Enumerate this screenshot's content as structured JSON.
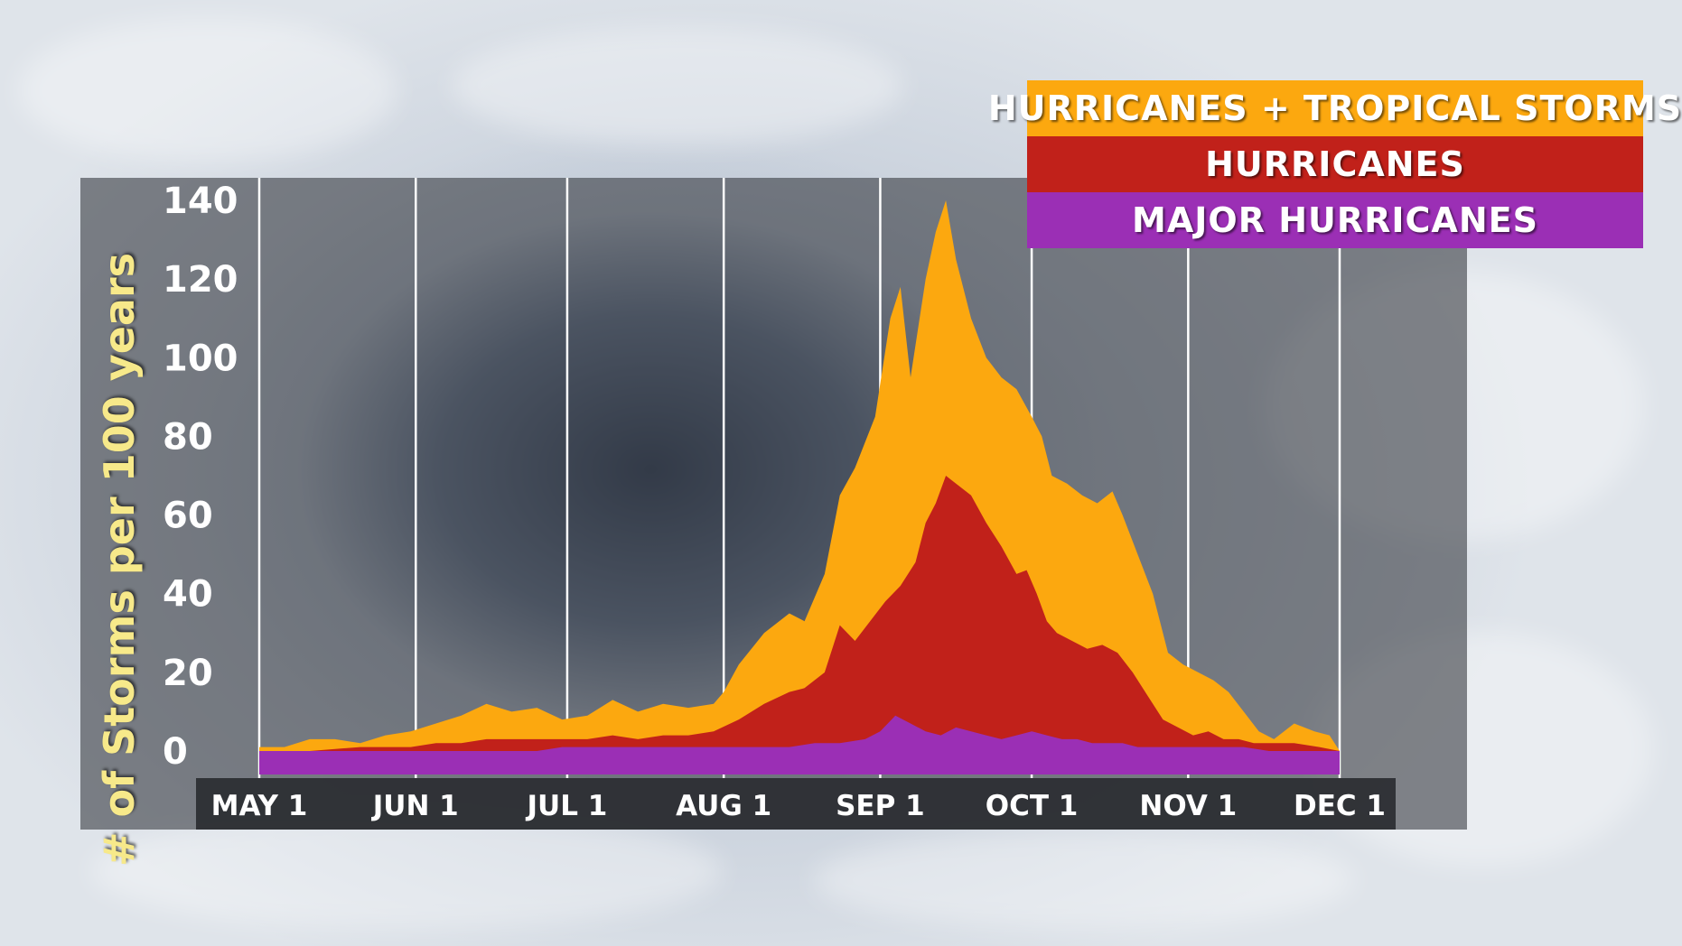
{
  "colors": {
    "tropical": "#fca80f",
    "hurricanes": "#c1211a",
    "major": "#9b2fb5",
    "panel": "#3b3f46",
    "tick_text": "#ffffff",
    "ylabel_text": "#f7e98a"
  },
  "chart_data": {
    "type": "area",
    "title": "",
    "xlabel": "",
    "ylabel": "# of Storms per 100 years",
    "ylim": [
      0,
      140
    ],
    "yticks": [
      0,
      20,
      40,
      60,
      80,
      100,
      120,
      140
    ],
    "xticks": [
      {
        "label": "MAY 1",
        "day": 0
      },
      {
        "label": "JUN 1",
        "day": 31
      },
      {
        "label": "JUL 1",
        "day": 61
      },
      {
        "label": "AUG 1",
        "day": 92
      },
      {
        "label": "SEP 1",
        "day": 123
      },
      {
        "label": "OCT 1",
        "day": 153
      },
      {
        "label": "NOV 1",
        "day": 184
      },
      {
        "label": "DEC 1",
        "day": 214
      }
    ],
    "legend_position": "top-right",
    "grid": "vertical",
    "series": [
      {
        "name": "HURRICANES + TROPICAL STORMS",
        "color_key": "tropical",
        "points": [
          [
            0,
            1
          ],
          [
            5,
            1
          ],
          [
            10,
            3
          ],
          [
            15,
            3
          ],
          [
            20,
            2
          ],
          [
            25,
            4
          ],
          [
            30,
            5
          ],
          [
            35,
            7
          ],
          [
            40,
            9
          ],
          [
            45,
            12
          ],
          [
            50,
            10
          ],
          [
            55,
            11
          ],
          [
            60,
            8
          ],
          [
            65,
            9
          ],
          [
            70,
            13
          ],
          [
            75,
            10
          ],
          [
            80,
            12
          ],
          [
            85,
            11
          ],
          [
            90,
            12
          ],
          [
            92,
            15
          ],
          [
            95,
            22
          ],
          [
            100,
            30
          ],
          [
            105,
            35
          ],
          [
            108,
            33
          ],
          [
            112,
            45
          ],
          [
            115,
            65
          ],
          [
            118,
            72
          ],
          [
            122,
            85
          ],
          [
            125,
            110
          ],
          [
            127,
            118
          ],
          [
            129,
            95
          ],
          [
            132,
            120
          ],
          [
            134,
            132
          ],
          [
            136,
            140
          ],
          [
            138,
            125
          ],
          [
            141,
            110
          ],
          [
            144,
            100
          ],
          [
            147,
            95
          ],
          [
            150,
            92
          ],
          [
            153,
            85
          ],
          [
            155,
            80
          ],
          [
            157,
            70
          ],
          [
            160,
            68
          ],
          [
            163,
            65
          ],
          [
            166,
            63
          ],
          [
            169,
            66
          ],
          [
            171,
            60
          ],
          [
            174,
            50
          ],
          [
            177,
            40
          ],
          [
            180,
            25
          ],
          [
            183,
            22
          ],
          [
            186,
            20
          ],
          [
            189,
            18
          ],
          [
            192,
            15
          ],
          [
            195,
            10
          ],
          [
            198,
            5
          ],
          [
            201,
            3
          ],
          [
            205,
            7
          ],
          [
            209,
            5
          ],
          [
            212,
            4
          ],
          [
            214,
            0
          ]
        ]
      },
      {
        "name": "HURRICANES",
        "color_key": "hurricanes",
        "points": [
          [
            0,
            0
          ],
          [
            10,
            0
          ],
          [
            20,
            1
          ],
          [
            25,
            1
          ],
          [
            30,
            1
          ],
          [
            35,
            2
          ],
          [
            40,
            2
          ],
          [
            45,
            3
          ],
          [
            50,
            3
          ],
          [
            55,
            3
          ],
          [
            60,
            3
          ],
          [
            65,
            3
          ],
          [
            70,
            4
          ],
          [
            75,
            3
          ],
          [
            80,
            4
          ],
          [
            85,
            4
          ],
          [
            90,
            5
          ],
          [
            95,
            8
          ],
          [
            100,
            12
          ],
          [
            105,
            15
          ],
          [
            108,
            16
          ],
          [
            112,
            20
          ],
          [
            115,
            32
          ],
          [
            118,
            28
          ],
          [
            121,
            33
          ],
          [
            124,
            38
          ],
          [
            127,
            42
          ],
          [
            130,
            48
          ],
          [
            132,
            58
          ],
          [
            134,
            63
          ],
          [
            136,
            70
          ],
          [
            138,
            68
          ],
          [
            141,
            65
          ],
          [
            144,
            58
          ],
          [
            147,
            52
          ],
          [
            150,
            45
          ],
          [
            152,
            46
          ],
          [
            154,
            40
          ],
          [
            156,
            33
          ],
          [
            158,
            30
          ],
          [
            161,
            28
          ],
          [
            164,
            26
          ],
          [
            167,
            27
          ],
          [
            170,
            25
          ],
          [
            173,
            20
          ],
          [
            176,
            14
          ],
          [
            179,
            8
          ],
          [
            182,
            6
          ],
          [
            185,
            4
          ],
          [
            188,
            5
          ],
          [
            191,
            3
          ],
          [
            194,
            3
          ],
          [
            197,
            2
          ],
          [
            200,
            2
          ],
          [
            205,
            2
          ],
          [
            210,
            1
          ],
          [
            214,
            0
          ]
        ]
      },
      {
        "name": "MAJOR HURRICANES",
        "color_key": "major",
        "points": [
          [
            0,
            0
          ],
          [
            55,
            0
          ],
          [
            60,
            1
          ],
          [
            65,
            1
          ],
          [
            70,
            1
          ],
          [
            75,
            1
          ],
          [
            80,
            1
          ],
          [
            85,
            1
          ],
          [
            90,
            1
          ],
          [
            95,
            1
          ],
          [
            100,
            1
          ],
          [
            105,
            1
          ],
          [
            110,
            2
          ],
          [
            115,
            2
          ],
          [
            120,
            3
          ],
          [
            123,
            5
          ],
          [
            126,
            9
          ],
          [
            129,
            7
          ],
          [
            132,
            5
          ],
          [
            135,
            4
          ],
          [
            138,
            6
          ],
          [
            141,
            5
          ],
          [
            144,
            4
          ],
          [
            147,
            3
          ],
          [
            150,
            4
          ],
          [
            153,
            5
          ],
          [
            156,
            4
          ],
          [
            159,
            3
          ],
          [
            162,
            3
          ],
          [
            165,
            2
          ],
          [
            168,
            2
          ],
          [
            171,
            2
          ],
          [
            174,
            1
          ],
          [
            177,
            1
          ],
          [
            180,
            1
          ],
          [
            185,
            1
          ],
          [
            190,
            1
          ],
          [
            195,
            1
          ],
          [
            200,
            0
          ],
          [
            214,
            0
          ]
        ]
      }
    ]
  }
}
